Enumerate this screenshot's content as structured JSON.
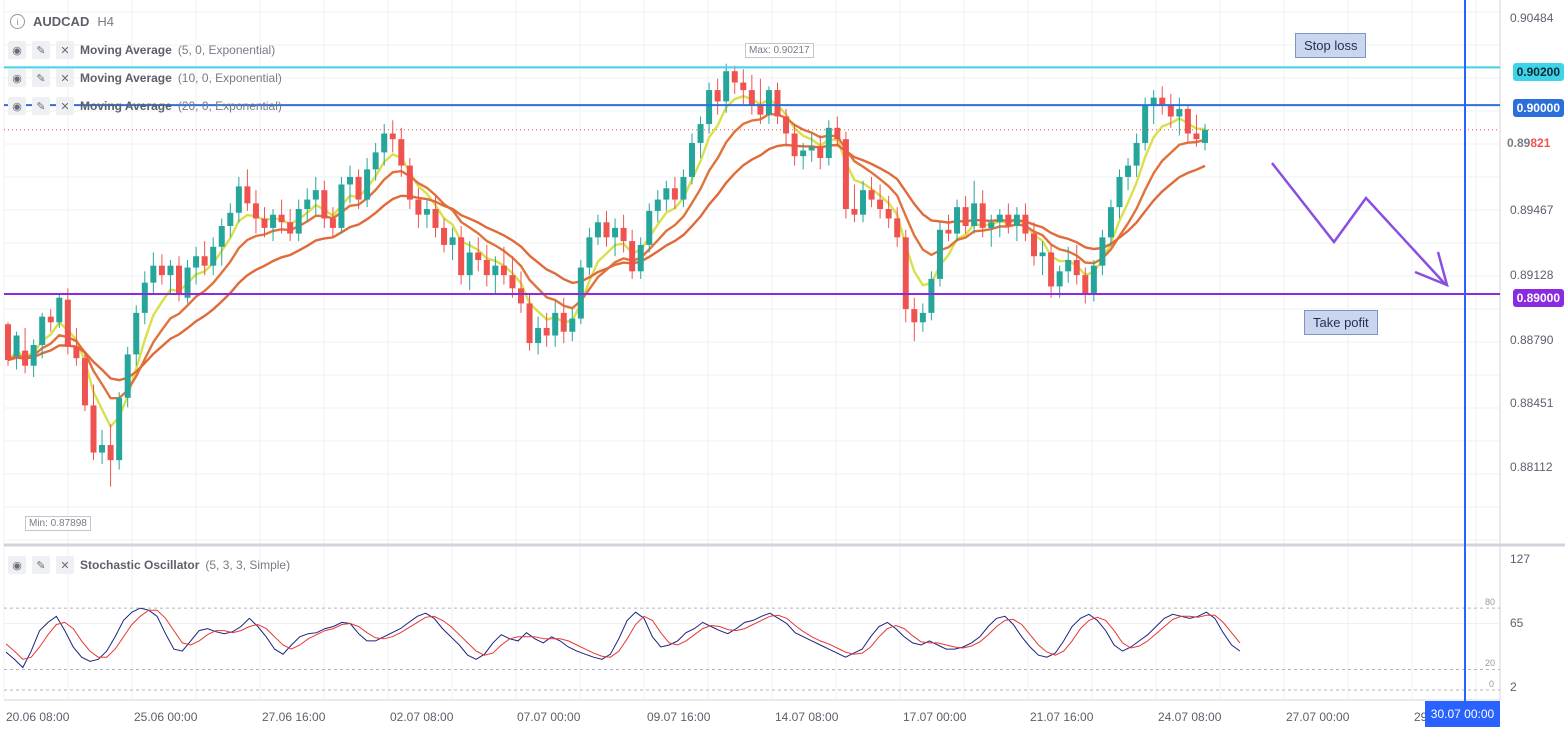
{
  "symbol": {
    "ticker": "AUDCAD",
    "timeframe": "H4",
    "info_icon": "info-icon"
  },
  "indicators": [
    {
      "name": "Moving Average",
      "params": "(5, 0, Exponential)",
      "color": "#d9e04a"
    },
    {
      "name": "Moving Average",
      "params": "(10, 0, Exponential)",
      "color": "#e0733a"
    },
    {
      "name": "Moving Average",
      "params": "(20, 0, Exponential)",
      "color": "#e06a3a"
    }
  ],
  "oscillator": {
    "name": "Stochastic Oscillator",
    "params": "(5, 3, 3, Simple)"
  },
  "annotations": {
    "stop_loss": "Stop loss",
    "take_profit": "Take pofit",
    "max_label": "Max: 0.90217",
    "min_label": "Min: 0.87898"
  },
  "price_axis": {
    "ticks": [
      "0.90484",
      "0.89467",
      "0.89128",
      "0.88790",
      "0.88451",
      "0.88112"
    ],
    "current_price_prefix": "0.89",
    "current_price_suffix": "821"
  },
  "horizontal_lines": [
    {
      "price": "0.90200",
      "color": "#3dd3e8"
    },
    {
      "price": "0.90000",
      "color": "#2c6fdc"
    },
    {
      "price": "0.89000",
      "color": "#8a2be2"
    }
  ],
  "oscillator_axis": {
    "ticks": [
      "127",
      "65",
      "2"
    ],
    "levels": [
      "80",
      "20",
      "0"
    ]
  },
  "time_axis": {
    "labels": [
      "20.06 08:00",
      "25.06 00:00",
      "27.06 16:00",
      "02.07 08:00",
      "07.07 00:00",
      "09.07 16:00",
      "14.07 08:00",
      "17.07 00:00",
      "21.07 16:00",
      "24.07 08:00",
      "27.07 00:00",
      "29"
    ],
    "cursor_label": "30.07 00:00"
  },
  "chart_data": {
    "type": "candlestick",
    "symbol": "AUDCAD",
    "timeframe": "H4",
    "ylim": [
      0.8775,
      0.9052
    ],
    "max": 0.90217,
    "min": 0.87898,
    "candles": [
      [
        0.8884,
        0.8885,
        0.8862,
        0.8865
      ],
      [
        0.8867,
        0.888,
        0.886,
        0.8878
      ],
      [
        0.887,
        0.8882,
        0.8858,
        0.8862
      ],
      [
        0.8862,
        0.8876,
        0.8856,
        0.8873
      ],
      [
        0.8873,
        0.889,
        0.8866,
        0.8888
      ],
      [
        0.8888,
        0.8892,
        0.888,
        0.8885
      ],
      [
        0.8885,
        0.89,
        0.8882,
        0.8898
      ],
      [
        0.8897,
        0.8903,
        0.8868,
        0.8872
      ],
      [
        0.8872,
        0.8882,
        0.8862,
        0.8866
      ],
      [
        0.8866,
        0.887,
        0.8838,
        0.8841
      ],
      [
        0.8841,
        0.8852,
        0.8812,
        0.8816
      ],
      [
        0.8816,
        0.8828,
        0.881,
        0.882
      ],
      [
        0.882,
        0.8831,
        0.8798,
        0.8812
      ],
      [
        0.8812,
        0.8848,
        0.8807,
        0.8845
      ],
      [
        0.8845,
        0.8872,
        0.884,
        0.8868
      ],
      [
        0.8868,
        0.8894,
        0.8862,
        0.889
      ],
      [
        0.889,
        0.8912,
        0.8884,
        0.8906
      ],
      [
        0.8906,
        0.8922,
        0.89,
        0.8915
      ],
      [
        0.8915,
        0.8921,
        0.8905,
        0.891
      ],
      [
        0.891,
        0.8918,
        0.89,
        0.8915
      ],
      [
        0.8915,
        0.892,
        0.8896,
        0.89
      ],
      [
        0.8898,
        0.8918,
        0.8895,
        0.8914
      ],
      [
        0.8914,
        0.8925,
        0.8905,
        0.892
      ],
      [
        0.892,
        0.8928,
        0.891,
        0.8915
      ],
      [
        0.8915,
        0.893,
        0.891,
        0.8925
      ],
      [
        0.8925,
        0.894,
        0.8915,
        0.8936
      ],
      [
        0.8936,
        0.8948,
        0.893,
        0.8943
      ],
      [
        0.8943,
        0.8962,
        0.8938,
        0.8957
      ],
      [
        0.8957,
        0.8966,
        0.8944,
        0.8948
      ],
      [
        0.8948,
        0.8955,
        0.8932,
        0.894
      ],
      [
        0.894,
        0.8946,
        0.893,
        0.8935
      ],
      [
        0.8935,
        0.8945,
        0.8928,
        0.8942
      ],
      [
        0.8942,
        0.895,
        0.8932,
        0.8938
      ],
      [
        0.8938,
        0.8945,
        0.8928,
        0.8932
      ],
      [
        0.8932,
        0.895,
        0.8928,
        0.8945
      ],
      [
        0.8945,
        0.8956,
        0.8938,
        0.895
      ],
      [
        0.895,
        0.8962,
        0.8942,
        0.8955
      ],
      [
        0.8955,
        0.896,
        0.8935,
        0.894
      ],
      [
        0.894,
        0.8946,
        0.893,
        0.8935
      ],
      [
        0.8935,
        0.8962,
        0.8932,
        0.8958
      ],
      [
        0.8958,
        0.8968,
        0.8948,
        0.8962
      ],
      [
        0.8962,
        0.8966,
        0.8945,
        0.895
      ],
      [
        0.895,
        0.8972,
        0.8946,
        0.8966
      ],
      [
        0.8966,
        0.898,
        0.896,
        0.8975
      ],
      [
        0.8975,
        0.899,
        0.8968,
        0.8985
      ],
      [
        0.8985,
        0.8992,
        0.8975,
        0.8982
      ],
      [
        0.8982,
        0.8988,
        0.8962,
        0.8968
      ],
      [
        0.8968,
        0.8972,
        0.8945,
        0.895
      ],
      [
        0.895,
        0.8956,
        0.8935,
        0.8942
      ],
      [
        0.8942,
        0.895,
        0.8935,
        0.8945
      ],
      [
        0.8945,
        0.8952,
        0.893,
        0.8935
      ],
      [
        0.8935,
        0.894,
        0.8922,
        0.8926
      ],
      [
        0.8926,
        0.8935,
        0.8918,
        0.893
      ],
      [
        0.893,
        0.8936,
        0.8905,
        0.891
      ],
      [
        0.891,
        0.8928,
        0.8902,
        0.8922
      ],
      [
        0.8922,
        0.893,
        0.8912,
        0.8918
      ],
      [
        0.8918,
        0.8926,
        0.8904,
        0.891
      ],
      [
        0.891,
        0.892,
        0.89,
        0.8915
      ],
      [
        0.8915,
        0.8925,
        0.8905,
        0.891
      ],
      [
        0.891,
        0.892,
        0.8898,
        0.8903
      ],
      [
        0.8903,
        0.8912,
        0.889,
        0.8895
      ],
      [
        0.8895,
        0.89,
        0.887,
        0.8874
      ],
      [
        0.8874,
        0.8888,
        0.8868,
        0.8882
      ],
      [
        0.8882,
        0.889,
        0.8872,
        0.8878
      ],
      [
        0.8878,
        0.8896,
        0.8872,
        0.889
      ],
      [
        0.889,
        0.8898,
        0.8874,
        0.888
      ],
      [
        0.888,
        0.8892,
        0.8875,
        0.8887
      ],
      [
        0.8887,
        0.8918,
        0.8884,
        0.8914
      ],
      [
        0.8914,
        0.8935,
        0.891,
        0.893
      ],
      [
        0.893,
        0.8942,
        0.8926,
        0.8938
      ],
      [
        0.8938,
        0.8944,
        0.8925,
        0.893
      ],
      [
        0.893,
        0.894,
        0.892,
        0.8935
      ],
      [
        0.8935,
        0.8942,
        0.8922,
        0.8928
      ],
      [
        0.8928,
        0.8934,
        0.8908,
        0.8912
      ],
      [
        0.8912,
        0.893,
        0.8908,
        0.8926
      ],
      [
        0.8926,
        0.8948,
        0.8922,
        0.8944
      ],
      [
        0.8944,
        0.8955,
        0.8938,
        0.895
      ],
      [
        0.895,
        0.896,
        0.8944,
        0.8956
      ],
      [
        0.8956,
        0.8962,
        0.8945,
        0.895
      ],
      [
        0.895,
        0.8966,
        0.8946,
        0.8962
      ],
      [
        0.8962,
        0.8985,
        0.8958,
        0.898
      ],
      [
        0.898,
        0.8994,
        0.8972,
        0.899
      ],
      [
        0.899,
        0.9012,
        0.8985,
        0.9008
      ],
      [
        0.9008,
        0.9014,
        0.8995,
        0.9002
      ],
      [
        0.9002,
        0.9022,
        0.8996,
        0.9018
      ],
      [
        0.9018,
        0.9021,
        0.9006,
        0.9012
      ],
      [
        0.9012,
        0.9019,
        0.9,
        0.9008
      ],
      [
        0.9008,
        0.9016,
        0.8995,
        0.9
      ],
      [
        0.9,
        0.9014,
        0.899,
        0.8995
      ],
      [
        0.8995,
        0.901,
        0.899,
        0.9008
      ],
      [
        0.9008,
        0.9012,
        0.899,
        0.8994
      ],
      [
        0.8994,
        0.8998,
        0.8978,
        0.8985
      ],
      [
        0.8985,
        0.899,
        0.8968,
        0.8973
      ],
      [
        0.8973,
        0.898,
        0.8966,
        0.8976
      ],
      [
        0.8976,
        0.8985,
        0.897,
        0.8978
      ],
      [
        0.8978,
        0.8984,
        0.8966,
        0.8972
      ],
      [
        0.8972,
        0.8992,
        0.8968,
        0.8988
      ],
      [
        0.8988,
        0.8994,
        0.8978,
        0.8982
      ],
      [
        0.8982,
        0.8986,
        0.894,
        0.8945
      ],
      [
        0.8945,
        0.8958,
        0.8938,
        0.8942
      ],
      [
        0.8942,
        0.896,
        0.8938,
        0.8955
      ],
      [
        0.8955,
        0.8962,
        0.8946,
        0.895
      ],
      [
        0.895,
        0.8958,
        0.894,
        0.8945
      ],
      [
        0.8945,
        0.8952,
        0.8935,
        0.894
      ],
      [
        0.894,
        0.8946,
        0.8925,
        0.893
      ],
      [
        0.893,
        0.8934,
        0.8885,
        0.8892
      ],
      [
        0.8892,
        0.8898,
        0.8875,
        0.8885
      ],
      [
        0.8885,
        0.8895,
        0.888,
        0.889
      ],
      [
        0.889,
        0.8912,
        0.8886,
        0.8908
      ],
      [
        0.8908,
        0.8938,
        0.8904,
        0.8934
      ],
      [
        0.8934,
        0.8942,
        0.8928,
        0.8932
      ],
      [
        0.8932,
        0.895,
        0.8928,
        0.8946
      ],
      [
        0.8946,
        0.8952,
        0.8932,
        0.8936
      ],
      [
        0.8936,
        0.896,
        0.8932,
        0.8948
      ],
      [
        0.8948,
        0.8955,
        0.893,
        0.8935
      ],
      [
        0.8935,
        0.8942,
        0.8925,
        0.8938
      ],
      [
        0.8938,
        0.8945,
        0.893,
        0.8942
      ],
      [
        0.8942,
        0.8948,
        0.8932,
        0.8936
      ],
      [
        0.8936,
        0.8946,
        0.8928,
        0.8942
      ],
      [
        0.8942,
        0.8948,
        0.8928,
        0.8932
      ],
      [
        0.8932,
        0.8938,
        0.8915,
        0.892
      ],
      [
        0.892,
        0.8928,
        0.891,
        0.8922
      ],
      [
        0.8922,
        0.8926,
        0.8898,
        0.8904
      ],
      [
        0.8904,
        0.8915,
        0.8898,
        0.8912
      ],
      [
        0.8912,
        0.8925,
        0.8906,
        0.8918
      ],
      [
        0.8918,
        0.8926,
        0.8905,
        0.891
      ],
      [
        0.891,
        0.8914,
        0.8895,
        0.89
      ],
      [
        0.89,
        0.8918,
        0.8896,
        0.8915
      ],
      [
        0.8915,
        0.8934,
        0.891,
        0.893
      ],
      [
        0.893,
        0.895,
        0.8925,
        0.8946
      ],
      [
        0.8946,
        0.8966,
        0.894,
        0.8962
      ],
      [
        0.8962,
        0.8972,
        0.8955,
        0.8968
      ],
      [
        0.8968,
        0.8985,
        0.8962,
        0.898
      ],
      [
        0.898,
        0.9004,
        0.8976,
        0.9
      ],
      [
        0.9,
        0.9008,
        0.899,
        0.9004
      ],
      [
        0.9004,
        0.901,
        0.8995,
        0.9
      ],
      [
        0.9,
        0.9006,
        0.8988,
        0.8994
      ],
      [
        0.8994,
        0.9004,
        0.8984,
        0.8998
      ],
      [
        0.8998,
        0.9,
        0.898,
        0.8985
      ],
      [
        0.8985,
        0.8995,
        0.8978,
        0.8982
      ],
      [
        0.898,
        0.899,
        0.8976,
        0.8987
      ]
    ],
    "moving_averages": [
      {
        "name": "Moving Average (5, 0, Exponential)",
        "period": 5,
        "color": "#d9e04a"
      },
      {
        "name": "Moving Average (10, 0, Exponential)",
        "period": 10,
        "color": "#e0733a"
      },
      {
        "name": "Moving Average (20, 0, Exponential)",
        "period": 20,
        "color": "#e06a3a"
      }
    ],
    "horizontal_levels": [
      0.902,
      0.9,
      0.89
    ],
    "stochastic": {
      "k": [
        37,
        30,
        22,
        38,
        58,
        66,
        72,
        58,
        42,
        32,
        28,
        30,
        38,
        52,
        68,
        76,
        80,
        78,
        72,
        55,
        40,
        38,
        48,
        58,
        60,
        57,
        55,
        57,
        62,
        70,
        62,
        52,
        40,
        35,
        44,
        52,
        55,
        56,
        60,
        62,
        66,
        65,
        55,
        48,
        48,
        52,
        56,
        60,
        66,
        72,
        75,
        70,
        60,
        52,
        44,
        34,
        30,
        35,
        46,
        54,
        50,
        48,
        56,
        50,
        46,
        52,
        48,
        42,
        38,
        35,
        32,
        30,
        35,
        50,
        68,
        76,
        70,
        52,
        42,
        44,
        48,
        56,
        60,
        66,
        62,
        58,
        55,
        60,
        66,
        68,
        72,
        75,
        70,
        65,
        56,
        52,
        48,
        44,
        40,
        36,
        32,
        36,
        40,
        52,
        62,
        66,
        60,
        52,
        46,
        44,
        48,
        44,
        40,
        40,
        42,
        46,
        52,
        62,
        70,
        72,
        64,
        52,
        42,
        34,
        32,
        36,
        48,
        62,
        70,
        74,
        68,
        58,
        44,
        38,
        42,
        48,
        54,
        62,
        70,
        74,
        72,
        70,
        72,
        76,
        70,
        56,
        44,
        38
      ],
      "d": [
        45,
        38,
        30,
        32,
        42,
        54,
        64,
        66,
        60,
        48,
        38,
        32,
        32,
        40,
        52,
        64,
        72,
        78,
        78,
        70,
        58,
        46,
        44,
        48,
        54,
        58,
        58,
        56,
        58,
        62,
        64,
        60,
        52,
        44,
        40,
        44,
        50,
        54,
        58,
        60,
        64,
        65,
        62,
        56,
        51,
        50,
        52,
        56,
        61,
        66,
        71,
        72,
        68,
        62,
        54,
        46,
        38,
        34,
        36,
        44,
        50,
        52,
        52,
        52,
        50,
        50,
        50,
        48,
        44,
        40,
        36,
        33,
        32,
        38,
        50,
        64,
        72,
        68,
        56,
        46,
        44,
        48,
        54,
        60,
        63,
        62,
        59,
        58,
        60,
        64,
        68,
        72,
        73,
        70,
        63,
        57,
        52,
        48,
        45,
        41,
        37,
        35,
        36,
        42,
        52,
        60,
        63,
        60,
        53,
        47,
        46,
        46,
        44,
        42,
        41,
        43,
        47,
        54,
        62,
        68,
        69,
        64,
        54,
        44,
        37,
        34,
        38,
        48,
        60,
        68,
        71,
        68,
        58,
        46,
        41,
        43,
        48,
        55,
        62,
        69,
        72,
        72,
        71,
        73,
        73,
        66,
        56,
        46
      ]
    }
  }
}
